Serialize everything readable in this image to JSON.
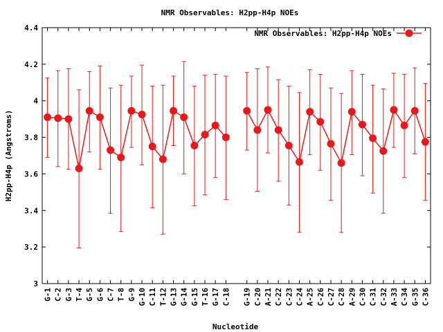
{
  "chart_data": {
    "type": "line",
    "title": "NMR Observables: H2pp-H4p NOEs",
    "xlabel": "Nucleotide",
    "ylabel": "H2pp-H4p (Angstroms)",
    "ylim": [
      3,
      4.4
    ],
    "yticks": [
      "3",
      "3.2",
      "3.4",
      "3.6",
      "3.8",
      "4",
      "4.2",
      "4.4"
    ],
    "grid": false,
    "legend_position": "top-right",
    "categories": [
      "G-1",
      "C-2",
      "G-3",
      "T-4",
      "G-5",
      "G-6",
      "C-7",
      "T-8",
      "G-9",
      "G-10",
      "C-11",
      "T-12",
      "G-13",
      "G-14",
      "G-15",
      "T-16",
      "G-17",
      "C-18",
      "",
      "G-19",
      "C-20",
      "A-21",
      "C-22",
      "C-23",
      "C-24",
      "A-25",
      "C-26",
      "C-27",
      "C-28",
      "A-29",
      "C-30",
      "C-31",
      "C-32",
      "A-33",
      "C-34",
      "G-35",
      "C-36"
    ],
    "series": [
      {
        "name": "NMR Observables: H2pp-H4p NOEs",
        "color": "#e41a1c",
        "values": [
          3.91,
          3.905,
          3.9,
          3.63,
          3.945,
          3.91,
          3.73,
          3.69,
          3.945,
          3.925,
          3.75,
          3.68,
          3.945,
          3.91,
          3.755,
          3.815,
          3.865,
          3.8,
          null,
          3.945,
          3.84,
          3.95,
          3.84,
          3.755,
          3.665,
          3.94,
          3.885,
          3.765,
          3.66,
          3.94,
          3.87,
          3.795,
          3.725,
          3.95,
          3.865,
          3.945,
          3.775
        ],
        "error_low": [
          3.69,
          3.64,
          3.625,
          3.195,
          3.72,
          3.625,
          3.385,
          3.285,
          3.745,
          3.65,
          3.415,
          3.27,
          3.755,
          3.6,
          3.425,
          3.485,
          3.58,
          3.46,
          null,
          3.73,
          3.505,
          3.715,
          3.56,
          3.43,
          3.28,
          3.705,
          3.62,
          3.455,
          3.28,
          3.705,
          3.59,
          3.495,
          3.385,
          3.745,
          3.58,
          3.71,
          3.455
        ],
        "error_high": [
          4.125,
          4.165,
          4.175,
          4.06,
          4.16,
          4.19,
          4.07,
          4.085,
          4.135,
          4.195,
          4.08,
          4.085,
          4.135,
          4.215,
          4.08,
          4.14,
          4.145,
          4.135,
          null,
          4.155,
          4.175,
          4.185,
          4.115,
          4.08,
          4.045,
          4.17,
          4.145,
          4.07,
          4.04,
          4.165,
          4.145,
          4.085,
          4.065,
          4.15,
          4.145,
          4.18,
          4.095
        ]
      }
    ]
  }
}
